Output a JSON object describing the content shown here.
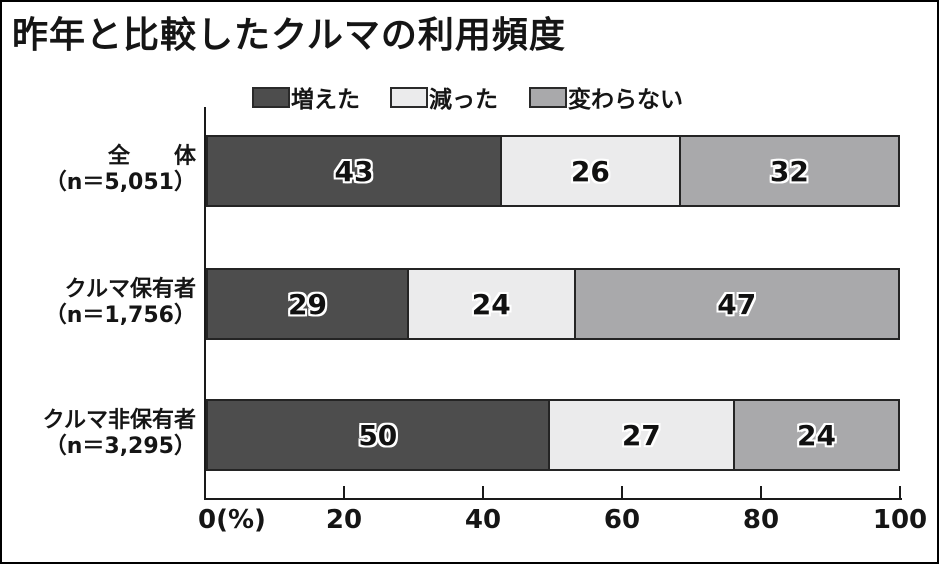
{
  "title": "昨年と比較したクルマの利用頻度",
  "legend": [
    {
      "label": "増えた",
      "color": "#4d4d4d"
    },
    {
      "label": "減った",
      "color": "#ebebec"
    },
    {
      "label": "変わらない",
      "color": "#a9a9ab"
    }
  ],
  "chart_data": {
    "type": "bar",
    "stacked": true,
    "orientation": "horizontal",
    "title": "昨年と比較したクルマの利用頻度",
    "categories": [
      "全　　体",
      "クルマ保有者",
      "クルマ非保有者"
    ],
    "category_notes": [
      "（n＝5,051）",
      "（n＝1,756）",
      "（n＝3,295）"
    ],
    "series": [
      {
        "name": "増えた",
        "color": "#4d4d4d",
        "values": [
          43,
          29,
          50
        ]
      },
      {
        "name": "減った",
        "color": "#ebebec",
        "values": [
          26,
          24,
          27
        ]
      },
      {
        "name": "変わらない",
        "color": "#a9a9ab",
        "values": [
          32,
          47,
          24
        ]
      }
    ],
    "xlim": [
      0,
      100
    ],
    "x_ticks": [
      "0(%)",
      "20",
      "40",
      "60",
      "80",
      "100"
    ],
    "legend_position": "top",
    "grid": false,
    "value_labels": "inside-center",
    "colors": {
      "axis": "#1a1a1a",
      "segment_border": "#242424",
      "background": "#ffffff"
    }
  }
}
